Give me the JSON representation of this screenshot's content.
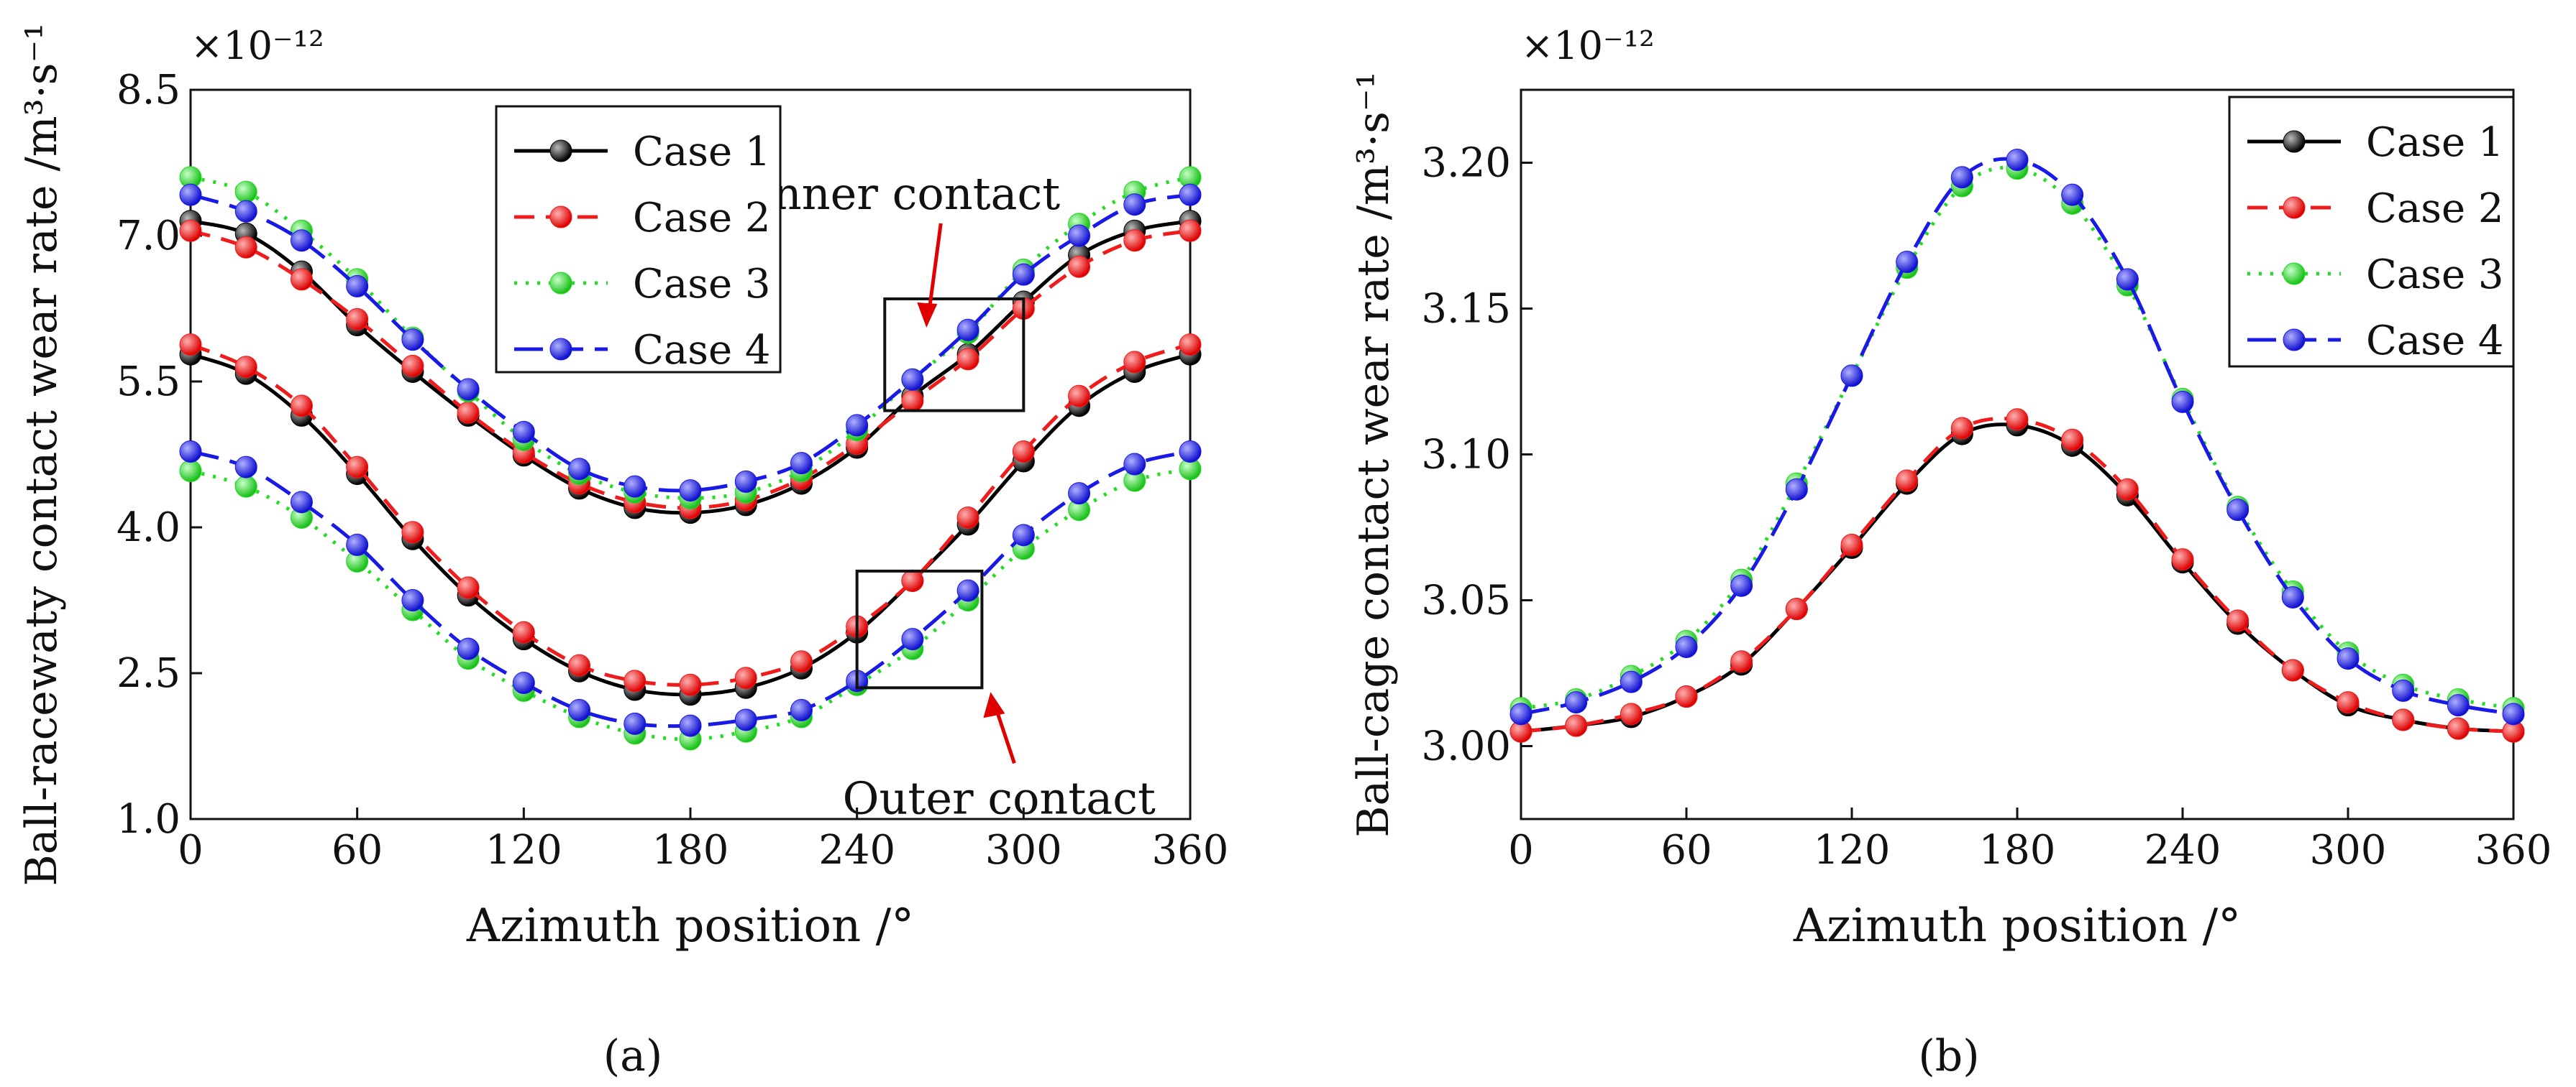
{
  "figure": {
    "panels": [
      "(a)",
      "(b)"
    ]
  },
  "chart_data": [
    {
      "type": "line",
      "panel": "a",
      "panel_label": "(a)",
      "xlabel": "Azimuth position /°",
      "ylabel": "Ball-racewaty contact wear rate /m³·s⁻¹",
      "scale_label": "×10⁻¹²",
      "xlim": [
        0,
        360
      ],
      "ylim": [
        1.0,
        8.5
      ],
      "xticks": [
        0,
        60,
        120,
        180,
        240,
        300,
        360
      ],
      "yticks": [
        1.0,
        2.5,
        4.0,
        5.5,
        7.0,
        8.5
      ],
      "ytick_labels": [
        "1.0",
        "2.5",
        "4.0",
        "5.5",
        "7.0",
        "8.5"
      ],
      "legend_position": "top-left",
      "annotations": [
        {
          "text": "Inner contact",
          "box_x": [
            250,
            300
          ],
          "box_y": [
            5.2,
            6.35
          ]
        },
        {
          "text": "Outer contact",
          "box_x": [
            240,
            285
          ],
          "box_y": [
            2.35,
            3.55
          ]
        }
      ],
      "marker_x": [
        0,
        20,
        40,
        60,
        80,
        100,
        120,
        140,
        160,
        180,
        200,
        220,
        240,
        260,
        280,
        300,
        320,
        340,
        360
      ],
      "series": [
        {
          "name": "Case 1",
          "color": "#000000",
          "dash": "solid",
          "group": "inner",
          "values": [
            7.15,
            7.02,
            6.63,
            6.08,
            5.6,
            5.15,
            4.74,
            4.4,
            4.2,
            4.15,
            4.23,
            4.45,
            4.82,
            5.35,
            5.78,
            6.32,
            6.8,
            7.05,
            7.15
          ]
        },
        {
          "name": "Case 2",
          "color": "#ee1c1c",
          "dash": "dashed",
          "group": "inner",
          "values": [
            7.05,
            6.88,
            6.55,
            6.14,
            5.66,
            5.18,
            4.77,
            4.45,
            4.26,
            4.2,
            4.28,
            4.5,
            4.86,
            5.3,
            5.73,
            6.25,
            6.68,
            6.95,
            7.05
          ]
        },
        {
          "name": "Case 3",
          "color": "#22dd22",
          "dash": "dotted",
          "group": "inner",
          "values": [
            7.6,
            7.45,
            7.05,
            6.55,
            5.95,
            5.4,
            4.9,
            4.55,
            4.36,
            4.3,
            4.36,
            4.58,
            5.0,
            5.52,
            6.0,
            6.65,
            7.12,
            7.45,
            7.6
          ]
        },
        {
          "name": "Case 4",
          "color": "#1a1ae6",
          "dash": "longdash",
          "group": "inner",
          "values": [
            7.42,
            7.25,
            6.95,
            6.48,
            5.93,
            5.42,
            4.98,
            4.6,
            4.42,
            4.38,
            4.47,
            4.66,
            5.05,
            5.52,
            6.03,
            6.6,
            7.0,
            7.32,
            7.42
          ]
        },
        {
          "name": "Case 1",
          "color": "#000000",
          "dash": "solid",
          "group": "outer",
          "values": [
            5.78,
            5.58,
            5.15,
            4.55,
            3.88,
            3.3,
            2.85,
            2.52,
            2.33,
            2.28,
            2.35,
            2.55,
            2.92,
            3.45,
            4.03,
            4.68,
            5.25,
            5.6,
            5.78
          ]
        },
        {
          "name": "Case 2",
          "color": "#ee1c1c",
          "dash": "dashed",
          "group": "outer",
          "values": [
            5.88,
            5.65,
            5.25,
            4.62,
            3.95,
            3.38,
            2.92,
            2.58,
            2.42,
            2.38,
            2.45,
            2.62,
            2.98,
            3.45,
            4.1,
            4.78,
            5.35,
            5.7,
            5.88
          ]
        },
        {
          "name": "Case 3",
          "color": "#22dd22",
          "dash": "dotted",
          "group": "outer",
          "values": [
            4.58,
            4.42,
            4.1,
            3.65,
            3.15,
            2.65,
            2.32,
            2.05,
            1.88,
            1.82,
            1.9,
            2.05,
            2.38,
            2.75,
            3.25,
            3.78,
            4.18,
            4.48,
            4.6
          ]
        },
        {
          "name": "Case 4",
          "color": "#1a1ae6",
          "dash": "longdash",
          "group": "outer",
          "values": [
            4.78,
            4.62,
            4.26,
            3.82,
            3.25,
            2.75,
            2.4,
            2.12,
            1.98,
            1.96,
            2.02,
            2.12,
            2.42,
            2.85,
            3.35,
            3.92,
            4.35,
            4.65,
            4.78
          ]
        }
      ]
    },
    {
      "type": "line",
      "panel": "b",
      "panel_label": "(b)",
      "xlabel": "Azimuth position /°",
      "ylabel": "Ball-cage contact wear rate /m³·s⁻¹",
      "scale_label": "×10⁻¹²",
      "xlim": [
        0,
        360
      ],
      "ylim": [
        2.975,
        3.225
      ],
      "xticks": [
        0,
        60,
        120,
        180,
        240,
        300,
        360
      ],
      "yticks": [
        3.0,
        3.05,
        3.1,
        3.15,
        3.2
      ],
      "ytick_labels": [
        "3.00",
        "3.05",
        "3.10",
        "3.15",
        "3.20"
      ],
      "legend_position": "top-right",
      "marker_x": [
        0,
        20,
        40,
        60,
        80,
        100,
        120,
        140,
        160,
        180,
        200,
        220,
        240,
        260,
        280,
        300,
        320,
        340,
        360
      ],
      "series": [
        {
          "name": "Case 1",
          "color": "#000000",
          "dash": "solid",
          "values": [
            3.005,
            3.007,
            3.01,
            3.017,
            3.028,
            3.047,
            3.068,
            3.09,
            3.107,
            3.11,
            3.103,
            3.086,
            3.063,
            3.042,
            3.026,
            3.014,
            3.009,
            3.006,
            3.005
          ]
        },
        {
          "name": "Case 2",
          "color": "#ee1c1c",
          "dash": "dashed",
          "values": [
            3.005,
            3.007,
            3.011,
            3.017,
            3.029,
            3.047,
            3.069,
            3.091,
            3.109,
            3.112,
            3.105,
            3.088,
            3.064,
            3.043,
            3.026,
            3.015,
            3.009,
            3.006,
            3.005
          ]
        },
        {
          "name": "Case 3",
          "color": "#22dd22",
          "dash": "dotted",
          "values": [
            3.013,
            3.016,
            3.024,
            3.036,
            3.057,
            3.09,
            3.127,
            3.164,
            3.192,
            3.198,
            3.186,
            3.158,
            3.119,
            3.082,
            3.053,
            3.032,
            3.021,
            3.016,
            3.013
          ]
        },
        {
          "name": "Case 4",
          "color": "#1a1ae6",
          "dash": "longdash",
          "values": [
            3.011,
            3.015,
            3.022,
            3.034,
            3.055,
            3.088,
            3.127,
            3.166,
            3.195,
            3.201,
            3.189,
            3.16,
            3.118,
            3.081,
            3.051,
            3.03,
            3.019,
            3.014,
            3.011
          ]
        }
      ]
    }
  ]
}
